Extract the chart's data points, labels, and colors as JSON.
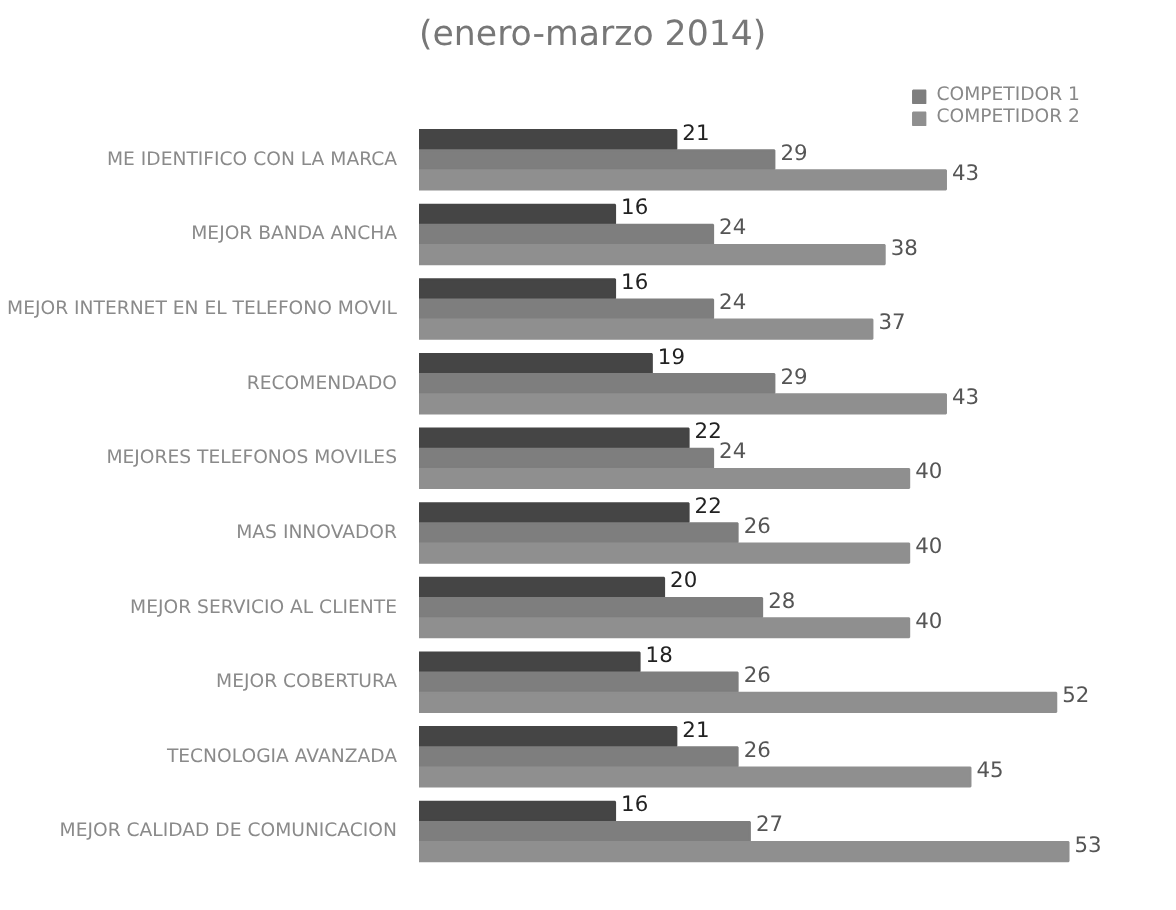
{
  "chart_data": {
    "type": "bar",
    "orientation": "horizontal",
    "title": "(enero-marzo 2014)",
    "categories": [
      "ME IDENTIFICO CON LA MARCA",
      "MEJOR BANDA ANCHA",
      "MEJOR INTERNET EN EL TELEFONO MOVIL",
      "RECOMENDADO",
      "MEJORES TELEFONOS MOVILES",
      "MAS INNOVADOR",
      "MEJOR SERVICIO AL CLIENTE",
      "MEJOR COBERTURA",
      "TECNOLOGIA AVANZADA",
      "MEJOR CALIDAD DE COMUNICACION"
    ],
    "series": [
      {
        "color": "#454545",
        "values": [
          21,
          16,
          16,
          19,
          22,
          22,
          20,
          18,
          21,
          16
        ]
      },
      {
        "name": "COMPETIDOR 1",
        "color": "#7e7e7e",
        "values": [
          29,
          24,
          24,
          29,
          24,
          26,
          28,
          26,
          26,
          27
        ]
      },
      {
        "name": "COMPETIDOR 2",
        "color": "#8f8f8f",
        "values": [
          43,
          38,
          37,
          43,
          40,
          40,
          40,
          52,
          45,
          53
        ]
      }
    ],
    "data_labels": true,
    "legend": "top right",
    "tick_labels": "y",
    "grid": false
  }
}
